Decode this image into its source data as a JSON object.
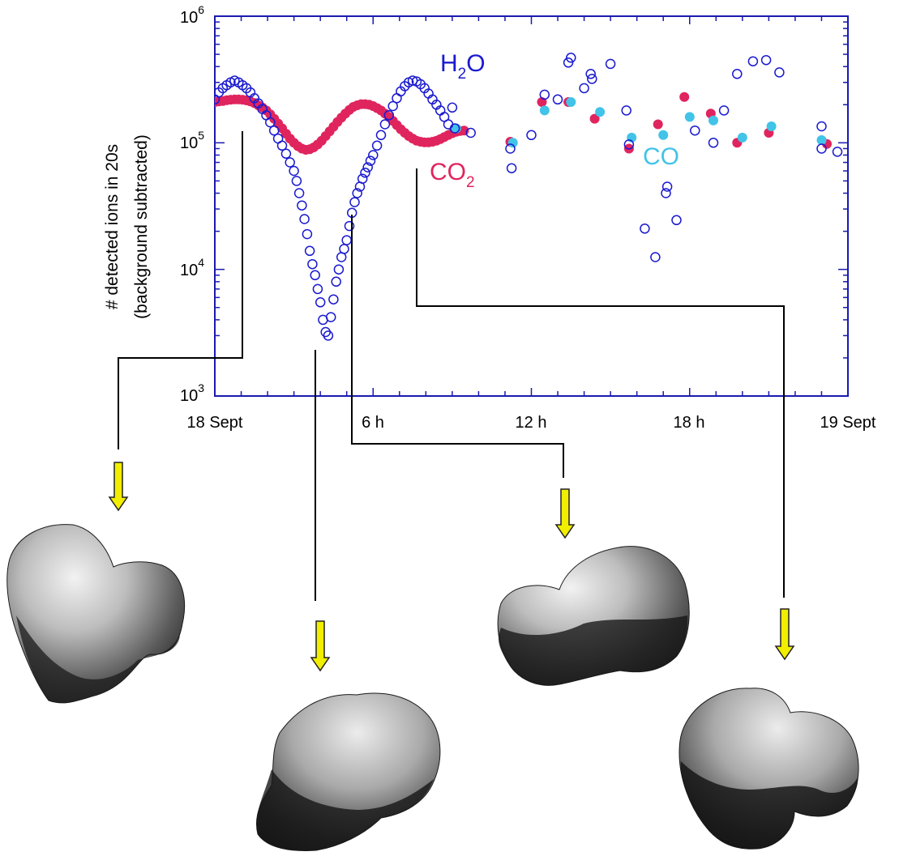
{
  "chart_data": {
    "type": "scatter",
    "x_ticks": [
      {
        "x": 0,
        "label": "18 Sept"
      },
      {
        "x": 6,
        "label": "6 h"
      },
      {
        "x": 12,
        "label": "12 h"
      },
      {
        "x": 18,
        "label": "18 h"
      },
      {
        "x": 24,
        "label": "19 Sept"
      }
    ],
    "xlim": [
      0,
      24
    ],
    "yscale": "log",
    "ylim": [
      1000,
      1000000
    ],
    "y_ticks": [
      {
        "value": 1000,
        "base": "10",
        "exp": "3"
      },
      {
        "value": 10000,
        "base": "10",
        "exp": "4"
      },
      {
        "value": 100000,
        "base": "10",
        "exp": "5"
      },
      {
        "value": 1000000,
        "base": "10",
        "exp": "6"
      }
    ],
    "ylabel_line1": "# detected ions in 20s",
    "ylabel_line2": "(background subtracted)",
    "series": [
      {
        "name": "H2O",
        "label_main": "H",
        "label_sub": "2",
        "label_end": "O",
        "color": "#1a1ad0",
        "marker": "open-circle",
        "x": [
          0.0,
          0.15,
          0.3,
          0.45,
          0.6,
          0.75,
          0.9,
          1.05,
          1.2,
          1.35,
          1.5,
          1.65,
          1.8,
          1.95,
          2.1,
          2.25,
          2.4,
          2.55,
          2.7,
          2.85,
          3.0,
          3.1,
          3.2,
          3.3,
          3.4,
          3.5,
          3.6,
          3.7,
          3.8,
          3.9,
          4.0,
          4.1,
          4.2,
          4.3,
          4.4,
          4.5,
          4.6,
          4.7,
          4.8,
          4.9,
          5.0,
          5.1,
          5.2,
          5.3,
          5.4,
          5.5,
          5.6,
          5.7,
          5.8,
          5.9,
          6.0,
          6.15,
          6.3,
          6.45,
          6.6,
          6.75,
          6.9,
          7.05,
          7.2,
          7.35,
          7.5,
          7.65,
          7.8,
          7.95,
          8.1,
          8.25,
          8.4,
          8.55,
          8.7,
          8.85,
          9.0,
          9.1,
          9.7,
          11.2,
          11.25,
          12.0,
          12.5,
          13.0,
          13.4,
          13.5,
          14.0,
          14.25,
          14.3,
          15.0,
          15.6,
          15.7,
          16.3,
          16.7,
          17.1,
          17.15,
          17.5,
          18.2,
          18.9,
          19.3,
          19.8,
          20.4,
          20.9,
          21.4,
          23.0,
          23.0,
          23.6
        ],
        "y": [
          220000,
          250000,
          270000,
          285000,
          300000,
          310000,
          300000,
          285000,
          270000,
          250000,
          225000,
          205000,
          185000,
          165000,
          145000,
          125000,
          108000,
          95000,
          82000,
          70000,
          60000,
          50000,
          40000,
          32000,
          25000,
          19000,
          14000,
          11000,
          9000,
          7000,
          5500,
          4000,
          3200,
          3000,
          4200,
          5800,
          8000,
          10000,
          12500,
          14500,
          17000,
          22000,
          28000,
          34000,
          40000,
          45000,
          52000,
          58000,
          64000,
          72000,
          80000,
          95000,
          115000,
          140000,
          165000,
          195000,
          225000,
          255000,
          280000,
          300000,
          310000,
          305000,
          290000,
          270000,
          245000,
          220000,
          200000,
          180000,
          160000,
          140000,
          190000,
          130000,
          120000,
          90000,
          63000,
          115000,
          240000,
          220000,
          430000,
          470000,
          270000,
          350000,
          320000,
          420000,
          180000,
          97000,
          21000,
          12500,
          40000,
          45000,
          24500,
          125000,
          100000,
          180000,
          350000,
          440000,
          450000,
          360000,
          90000,
          135000,
          85000
        ]
      },
      {
        "name": "CO2",
        "label_main": "CO",
        "label_sub": "2",
        "color": "#e0245e",
        "marker": "filled-circle",
        "x": [
          0.0,
          0.15,
          0.3,
          0.45,
          0.6,
          0.75,
          0.9,
          1.05,
          1.2,
          1.35,
          1.5,
          1.65,
          1.8,
          1.95,
          2.1,
          2.25,
          2.4,
          2.55,
          2.7,
          2.85,
          3.0,
          3.15,
          3.3,
          3.45,
          3.6,
          3.75,
          3.9,
          4.05,
          4.2,
          4.35,
          4.5,
          4.65,
          4.8,
          4.95,
          5.1,
          5.25,
          5.4,
          5.55,
          5.7,
          5.85,
          6.0,
          6.15,
          6.3,
          6.45,
          6.6,
          6.75,
          6.9,
          7.05,
          7.2,
          7.35,
          7.5,
          7.65,
          7.8,
          7.95,
          8.1,
          8.25,
          8.4,
          8.55,
          8.7,
          8.85,
          9.0,
          9.15,
          9.3,
          9.45,
          11.2,
          12.4,
          13.4,
          14.4,
          15.7,
          16.8,
          17.8,
          18.8,
          19.8,
          21.0,
          23.2
        ],
        "y": [
          210000,
          212000,
          214000,
          217000,
          219000,
          220000,
          220000,
          219000,
          216000,
          212000,
          206000,
          198000,
          190000,
          180000,
          168000,
          155000,
          142000,
          130000,
          118000,
          108000,
          100000,
          94000,
          90000,
          88000,
          89000,
          92000,
          97000,
          104000,
          113000,
          123000,
          134000,
          146000,
          158000,
          170000,
          182000,
          192000,
          198000,
          202000,
          202000,
          200000,
          195000,
          188000,
          180000,
          170000,
          160000,
          149000,
          138000,
          128000,
          120000,
          113000,
          108000,
          104000,
          102000,
          101000,
          101000,
          102000,
          104000,
          107000,
          111000,
          115000,
          119000,
          122000,
          124000,
          125000,
          102000,
          210000,
          210000,
          155000,
          90000,
          140000,
          230000,
          170000,
          100000,
          120000,
          98000
        ]
      },
      {
        "name": "CO",
        "label_main": "CO",
        "color": "#42c3e8",
        "marker": "filled-circle",
        "x": [
          9.15,
          11.3,
          12.5,
          13.5,
          14.6,
          15.8,
          17.0,
          18.0,
          18.9,
          20.0,
          21.1,
          23.0
        ],
        "y": [
          130000,
          100000,
          180000,
          210000,
          175000,
          110000,
          115000,
          160000,
          150000,
          110000,
          135000,
          105000
        ]
      }
    ]
  },
  "annotation": {
    "arrow_color": "#f2ee00",
    "connector_color": "#000000"
  }
}
